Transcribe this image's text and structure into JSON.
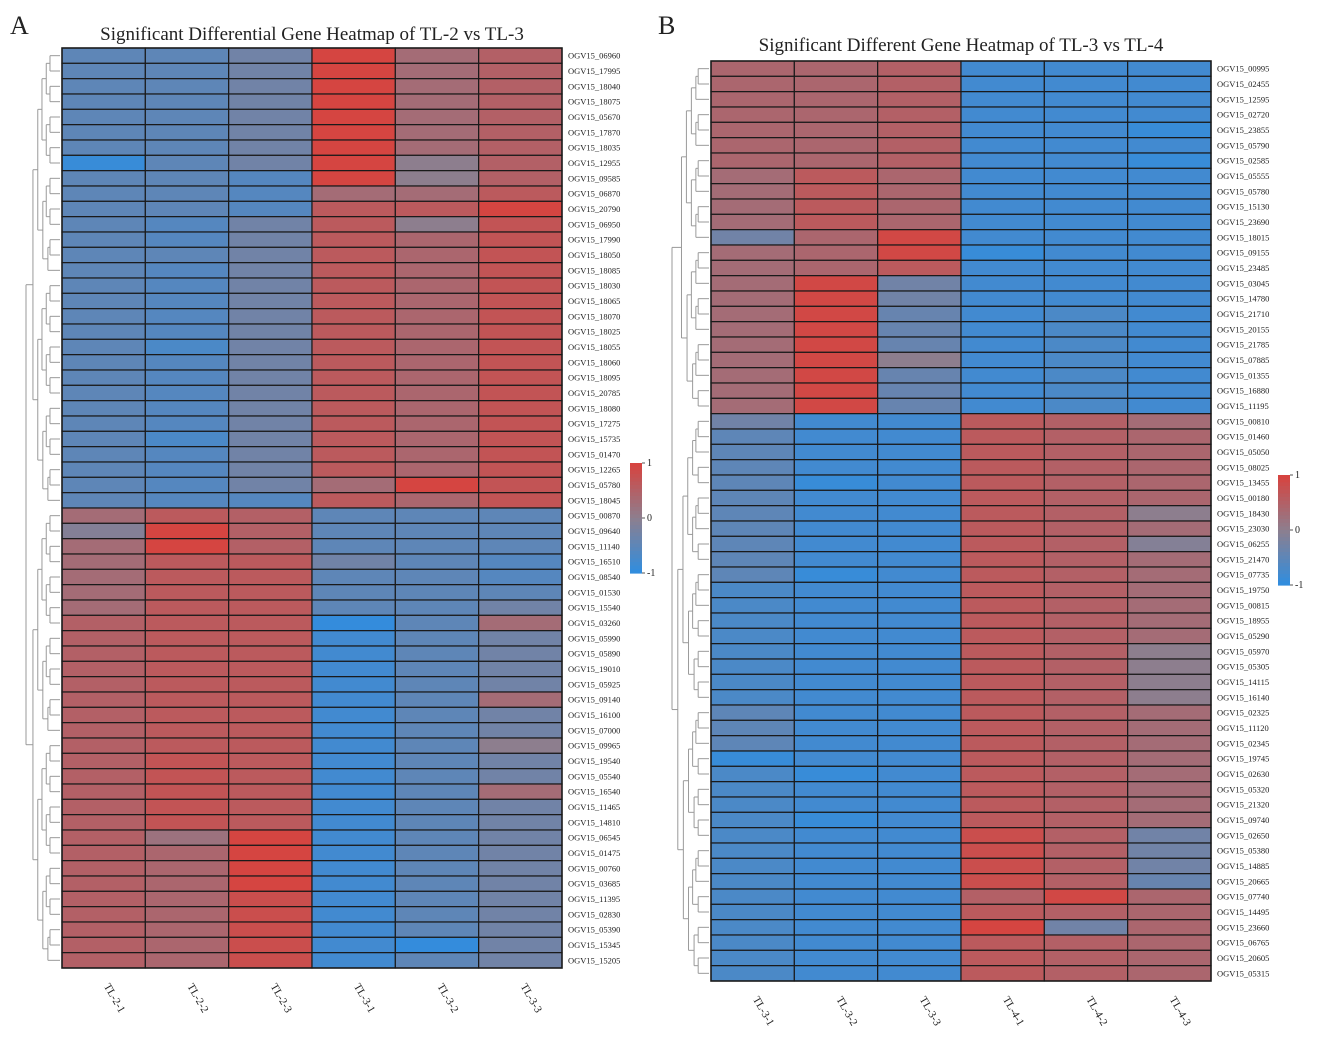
{
  "chart_data": [
    {
      "type": "heatmap",
      "panel": "A",
      "title": "Significant Differential Gene Heatmap of TL-2 vs TL-3",
      "columns": [
        "TL-2-1",
        "TL-2-2",
        "TL-2-3",
        "TL-3-1",
        "TL-3-2",
        "TL-3-3"
      ],
      "rows": [
        "OGV15_06960",
        "OGV15_17995",
        "OGV15_18040",
        "OGV15_18075",
        "OGV15_05670",
        "OGV15_17870",
        "OGV15_18035",
        "OGV15_12955",
        "OGV15_09585",
        "OGV15_06870",
        "OGV15_20790",
        "OGV15_06950",
        "OGV15_17990",
        "OGV15_18050",
        "OGV15_18085",
        "OGV15_18030",
        "OGV15_18065",
        "OGV15_18070",
        "OGV15_18025",
        "OGV15_18055",
        "OGV15_18060",
        "OGV15_18095",
        "OGV15_20785",
        "OGV15_18080",
        "OGV15_17275",
        "OGV15_15735",
        "OGV15_01470",
        "OGV15_12265",
        "OGV15_05780",
        "OGV15_18045",
        "OGV15_00870",
        "OGV15_09640",
        "OGV15_11140",
        "OGV15_16510",
        "OGV15_08540",
        "OGV15_01530",
        "OGV15_15540",
        "OGV15_03260",
        "OGV15_05990",
        "OGV15_05890",
        "OGV15_19010",
        "OGV15_05925",
        "OGV15_09140",
        "OGV15_16100",
        "OGV15_07000",
        "OGV15_09965",
        "OGV15_19540",
        "OGV15_05540",
        "OGV15_16540",
        "OGV15_11465",
        "OGV15_14810",
        "OGV15_06545",
        "OGV15_01475",
        "OGV15_00760",
        "OGV15_03685",
        "OGV15_11395",
        "OGV15_02830",
        "OGV15_05390",
        "OGV15_15345",
        "OGV15_15205"
      ],
      "values": [
        [
          -0.5,
          -0.5,
          -0.3,
          0.95,
          0.3,
          0.5
        ],
        [
          -0.5,
          -0.5,
          -0.3,
          0.95,
          0.3,
          0.5
        ],
        [
          -0.5,
          -0.5,
          -0.3,
          0.95,
          0.3,
          0.5
        ],
        [
          -0.5,
          -0.5,
          -0.3,
          0.95,
          0.3,
          0.5
        ],
        [
          -0.5,
          -0.5,
          -0.3,
          0.95,
          0.3,
          0.5
        ],
        [
          -0.5,
          -0.5,
          -0.3,
          0.95,
          0.3,
          0.5
        ],
        [
          -0.5,
          -0.5,
          -0.3,
          0.95,
          0.3,
          0.5
        ],
        [
          -0.9,
          -0.5,
          -0.3,
          0.95,
          0.0,
          0.5
        ],
        [
          -0.5,
          -0.5,
          -0.6,
          0.95,
          0.0,
          0.5
        ],
        [
          -0.5,
          -0.5,
          -0.6,
          0.3,
          0.3,
          0.6
        ],
        [
          -0.5,
          -0.5,
          -0.6,
          0.6,
          0.6,
          0.95
        ],
        [
          -0.5,
          -0.6,
          -0.3,
          0.6,
          0.0,
          0.7
        ],
        [
          -0.5,
          -0.6,
          -0.3,
          0.6,
          0.4,
          0.7
        ],
        [
          -0.5,
          -0.5,
          -0.3,
          0.6,
          0.4,
          0.7
        ],
        [
          -0.5,
          -0.6,
          -0.3,
          0.6,
          0.4,
          0.7
        ],
        [
          -0.5,
          -0.6,
          -0.3,
          0.6,
          0.4,
          0.7
        ],
        [
          -0.5,
          -0.6,
          -0.3,
          0.6,
          0.4,
          0.7
        ],
        [
          -0.5,
          -0.6,
          -0.3,
          0.6,
          0.4,
          0.7
        ],
        [
          -0.5,
          -0.6,
          -0.3,
          0.6,
          0.4,
          0.7
        ],
        [
          -0.5,
          -0.7,
          -0.3,
          0.6,
          0.4,
          0.7
        ],
        [
          -0.5,
          -0.6,
          -0.3,
          0.6,
          0.4,
          0.7
        ],
        [
          -0.5,
          -0.6,
          -0.3,
          0.6,
          0.4,
          0.7
        ],
        [
          -0.5,
          -0.6,
          -0.3,
          0.6,
          0.4,
          0.7
        ],
        [
          -0.5,
          -0.6,
          -0.3,
          0.6,
          0.4,
          0.7
        ],
        [
          -0.5,
          -0.6,
          -0.3,
          0.6,
          0.4,
          0.7
        ],
        [
          -0.5,
          -0.7,
          -0.3,
          0.6,
          0.4,
          0.7
        ],
        [
          -0.5,
          -0.6,
          -0.3,
          0.6,
          0.4,
          0.7
        ],
        [
          -0.5,
          -0.6,
          -0.3,
          0.6,
          0.4,
          0.7
        ],
        [
          -0.5,
          -0.6,
          -0.3,
          0.3,
          0.95,
          0.7
        ],
        [
          -0.5,
          -0.6,
          -0.6,
          0.6,
          0.4,
          0.7
        ],
        [
          0.3,
          0.6,
          0.5,
          -0.5,
          -0.5,
          -0.5
        ],
        [
          -0.1,
          0.95,
          0.5,
          -0.5,
          -0.5,
          -0.5
        ],
        [
          0.3,
          0.95,
          0.5,
          -0.5,
          -0.5,
          -0.5
        ],
        [
          0.3,
          0.6,
          0.6,
          -0.3,
          -0.5,
          -0.6
        ],
        [
          0.3,
          0.6,
          0.6,
          -0.5,
          -0.5,
          -0.6
        ],
        [
          0.3,
          0.6,
          0.6,
          -0.5,
          -0.5,
          -0.5
        ],
        [
          0.3,
          0.6,
          0.6,
          -0.5,
          -0.5,
          -0.3
        ],
        [
          0.5,
          0.6,
          0.6,
          -0.95,
          -0.5,
          0.3
        ],
        [
          0.5,
          0.6,
          0.6,
          -0.8,
          -0.5,
          -0.3
        ],
        [
          0.5,
          0.6,
          0.6,
          -0.8,
          -0.5,
          -0.3
        ],
        [
          0.5,
          0.6,
          0.6,
          -0.8,
          -0.5,
          -0.3
        ],
        [
          0.5,
          0.6,
          0.6,
          -0.8,
          -0.5,
          -0.3
        ],
        [
          0.5,
          0.6,
          0.6,
          -0.8,
          -0.5,
          0.3
        ],
        [
          0.5,
          0.6,
          0.6,
          -0.8,
          -0.5,
          -0.3
        ],
        [
          0.5,
          0.6,
          0.6,
          -0.8,
          -0.5,
          -0.3
        ],
        [
          0.5,
          0.6,
          0.6,
          -0.8,
          -0.5,
          0.0
        ],
        [
          0.5,
          0.7,
          0.6,
          -0.8,
          -0.5,
          -0.3
        ],
        [
          0.5,
          0.7,
          0.6,
          -0.8,
          -0.5,
          -0.3
        ],
        [
          0.5,
          0.7,
          0.6,
          -0.8,
          -0.5,
          0.3
        ],
        [
          0.5,
          0.7,
          0.6,
          -0.8,
          -0.5,
          -0.3
        ],
        [
          0.5,
          0.7,
          0.6,
          -0.8,
          -0.5,
          -0.3
        ],
        [
          0.5,
          0.2,
          0.95,
          -0.8,
          -0.5,
          -0.3
        ],
        [
          0.5,
          0.4,
          0.95,
          -0.8,
          -0.5,
          -0.3
        ],
        [
          0.5,
          0.4,
          0.95,
          -0.8,
          -0.5,
          -0.3
        ],
        [
          0.5,
          0.4,
          0.95,
          -0.8,
          -0.5,
          -0.3
        ],
        [
          0.5,
          0.4,
          0.8,
          -0.8,
          -0.5,
          -0.3
        ],
        [
          0.5,
          0.4,
          0.8,
          -0.8,
          -0.5,
          -0.3
        ],
        [
          0.5,
          0.4,
          0.8,
          -0.8,
          -0.5,
          -0.3
        ],
        [
          0.5,
          0.4,
          0.8,
          -0.8,
          -0.95,
          -0.3
        ],
        [
          0.5,
          0.4,
          0.8,
          -0.8,
          -0.5,
          -0.3
        ]
      ],
      "legend": {
        "ticks": [
          1,
          0,
          -1
        ],
        "tick_labels": [
          "1",
          "0",
          "-1"
        ],
        "range": [
          -1,
          1
        ]
      }
    },
    {
      "type": "heatmap",
      "panel": "B",
      "title": "Significant Different Gene Heatmap of TL-3 vs TL-4",
      "columns": [
        "TL-3-1",
        "TL-3-2",
        "TL-3-3",
        "TL-4-1",
        "TL-4-2",
        "TL-4-3"
      ],
      "rows": [
        "OGV15_00995",
        "OGV15_02455",
        "OGV15_12595",
        "OGV15_02720",
        "OGV15_23855",
        "OGV15_05790",
        "OGV15_02585",
        "OGV15_05555",
        "OGV15_05780",
        "OGV15_15130",
        "OGV15_23690",
        "OGV15_18015",
        "OGV15_09155",
        "OGV15_23485",
        "OGV15_03045",
        "OGV15_14780",
        "OGV15_21710",
        "OGV15_20155",
        "OGV15_21785",
        "OGV15_07885",
        "OGV15_01355",
        "OGV15_16880",
        "OGV15_11195",
        "OGV15_00810",
        "OGV15_01460",
        "OGV15_05050",
        "OGV15_08025",
        "OGV15_13455",
        "OGV15_00180",
        "OGV15_18430",
        "OGV15_23030",
        "OGV15_06255",
        "OGV15_21470",
        "OGV15_07735",
        "OGV15_19750",
        "OGV15_00815",
        "OGV15_18955",
        "OGV15_05290",
        "OGV15_05970",
        "OGV15_05305",
        "OGV15_14115",
        "OGV15_16140",
        "OGV15_02325",
        "OGV15_11120",
        "OGV15_02345",
        "OGV15_19745",
        "OGV15_02630",
        "OGV15_05320",
        "OGV15_21320",
        "OGV15_09740",
        "OGV15_02650",
        "OGV15_05380",
        "OGV15_14885",
        "OGV15_20665",
        "OGV15_07740",
        "OGV15_14495",
        "OGV15_23660",
        "OGV15_06765",
        "OGV15_20605",
        "OGV15_05315"
      ],
      "values": [
        [
          0.4,
          0.4,
          0.5,
          -0.8,
          -0.8,
          -0.8
        ],
        [
          0.4,
          0.4,
          0.5,
          -0.8,
          -0.8,
          -0.8
        ],
        [
          0.4,
          0.4,
          0.5,
          -0.8,
          -0.8,
          -0.8
        ],
        [
          0.4,
          0.4,
          0.5,
          -0.8,
          -0.8,
          -0.8
        ],
        [
          0.4,
          0.4,
          0.5,
          -0.8,
          -0.8,
          -0.9
        ],
        [
          0.4,
          0.4,
          0.5,
          -0.8,
          -0.8,
          -0.8
        ],
        [
          0.4,
          0.4,
          0.5,
          -0.8,
          -0.8,
          -0.9
        ],
        [
          0.3,
          0.6,
          0.4,
          -0.8,
          -0.8,
          -0.8
        ],
        [
          0.3,
          0.6,
          0.4,
          -0.8,
          -0.8,
          -0.8
        ],
        [
          0.3,
          0.6,
          0.4,
          -0.8,
          -0.8,
          -0.8
        ],
        [
          0.3,
          0.6,
          0.4,
          -0.8,
          -0.8,
          -0.8
        ],
        [
          -0.3,
          0.4,
          0.9,
          -0.8,
          -0.8,
          -0.8
        ],
        [
          0.3,
          0.4,
          0.9,
          -0.9,
          -0.8,
          -0.8
        ],
        [
          0.3,
          0.4,
          0.6,
          -0.8,
          -0.8,
          -0.8
        ],
        [
          0.3,
          0.9,
          -0.3,
          -0.8,
          -0.8,
          -0.8
        ],
        [
          0.3,
          0.9,
          -0.3,
          -0.8,
          -0.8,
          -0.8
        ],
        [
          0.3,
          0.9,
          -0.4,
          -0.8,
          -0.7,
          -0.8
        ],
        [
          0.3,
          0.9,
          -0.4,
          -0.8,
          -0.7,
          -0.8
        ],
        [
          0.3,
          0.9,
          -0.4,
          -0.8,
          -0.7,
          -0.8
        ],
        [
          0.3,
          0.9,
          0.0,
          -0.8,
          -0.7,
          -0.8
        ],
        [
          0.3,
          0.9,
          -0.4,
          -0.8,
          -0.7,
          -0.8
        ],
        [
          0.3,
          0.9,
          -0.4,
          -0.8,
          -0.7,
          -0.8
        ],
        [
          0.3,
          0.9,
          -0.4,
          -0.8,
          -0.7,
          -0.8
        ],
        [
          -0.3,
          -0.8,
          -0.8,
          0.6,
          0.5,
          0.3
        ],
        [
          -0.5,
          -0.8,
          -0.8,
          0.6,
          0.5,
          0.4
        ],
        [
          -0.5,
          -0.8,
          -0.8,
          0.6,
          0.5,
          0.4
        ],
        [
          -0.5,
          -0.8,
          -0.8,
          0.6,
          0.5,
          0.4
        ],
        [
          -0.5,
          -0.9,
          -0.8,
          0.6,
          0.5,
          0.4
        ],
        [
          -0.5,
          -0.8,
          -0.8,
          0.6,
          0.5,
          0.4
        ],
        [
          -0.5,
          -0.8,
          -0.8,
          0.6,
          0.5,
          0.0
        ],
        [
          -0.5,
          -0.8,
          -0.8,
          0.6,
          0.5,
          0.3
        ],
        [
          -0.5,
          -0.8,
          -0.8,
          0.6,
          0.5,
          -0.1
        ],
        [
          -0.5,
          -0.8,
          -0.8,
          0.6,
          0.5,
          0.3
        ],
        [
          -0.5,
          -0.9,
          -0.8,
          0.6,
          0.5,
          0.3
        ],
        [
          -0.7,
          -0.8,
          -0.8,
          0.6,
          0.5,
          0.3
        ],
        [
          -0.7,
          -0.8,
          -0.8,
          0.6,
          0.5,
          0.3
        ],
        [
          -0.7,
          -0.8,
          -0.8,
          0.6,
          0.5,
          0.3
        ],
        [
          -0.7,
          -0.8,
          -0.8,
          0.6,
          0.5,
          0.3
        ],
        [
          -0.7,
          -0.8,
          -0.8,
          0.6,
          0.5,
          0.0
        ],
        [
          -0.7,
          -0.8,
          -0.8,
          0.6,
          0.5,
          0.0
        ],
        [
          -0.7,
          -0.8,
          -0.8,
          0.6,
          0.5,
          0.0
        ],
        [
          -0.7,
          -0.8,
          -0.8,
          0.6,
          0.5,
          0.0
        ],
        [
          -0.5,
          -0.8,
          -0.8,
          0.6,
          0.5,
          0.3
        ],
        [
          -0.5,
          -0.8,
          -0.8,
          0.6,
          0.5,
          0.3
        ],
        [
          -0.5,
          -0.8,
          -0.8,
          0.6,
          0.5,
          0.3
        ],
        [
          -0.9,
          -0.8,
          -0.8,
          0.6,
          0.5,
          0.3
        ],
        [
          -0.7,
          -0.9,
          -0.8,
          0.6,
          0.5,
          0.3
        ],
        [
          -0.7,
          -0.8,
          -0.8,
          0.6,
          0.5,
          0.3
        ],
        [
          -0.7,
          -0.8,
          -0.8,
          0.6,
          0.5,
          0.3
        ],
        [
          -0.7,
          -0.9,
          -0.8,
          0.6,
          0.5,
          0.3
        ],
        [
          -0.7,
          -0.8,
          -0.8,
          0.8,
          0.5,
          -0.3
        ],
        [
          -0.7,
          -0.8,
          -0.8,
          0.8,
          0.5,
          -0.3
        ],
        [
          -0.7,
          -0.8,
          -0.8,
          0.8,
          0.5,
          -0.3
        ],
        [
          -0.7,
          -0.8,
          -0.8,
          0.8,
          0.5,
          -0.4
        ],
        [
          -0.7,
          -0.8,
          -0.8,
          0.5,
          0.9,
          0.4
        ],
        [
          -0.7,
          -0.8,
          -0.8,
          0.6,
          0.5,
          0.4
        ],
        [
          -0.7,
          -0.8,
          -0.8,
          0.95,
          -0.3,
          0.4
        ],
        [
          -0.7,
          -0.8,
          -0.8,
          0.6,
          0.5,
          0.4
        ],
        [
          -0.7,
          -0.8,
          -0.8,
          0.6,
          0.5,
          0.4
        ],
        [
          -0.7,
          -0.8,
          -0.8,
          0.6,
          0.5,
          0.4
        ]
      ],
      "legend": {
        "ticks": [
          1,
          0,
          -1
        ],
        "tick_labels": [
          "1",
          "0",
          "-1"
        ],
        "range": [
          -1,
          1
        ]
      }
    }
  ],
  "colors": {
    "high": "#d9423d",
    "mid": "#8d7e8e",
    "low": "#2f8de0",
    "text": "#222222",
    "tree": "#9a9a9a"
  }
}
